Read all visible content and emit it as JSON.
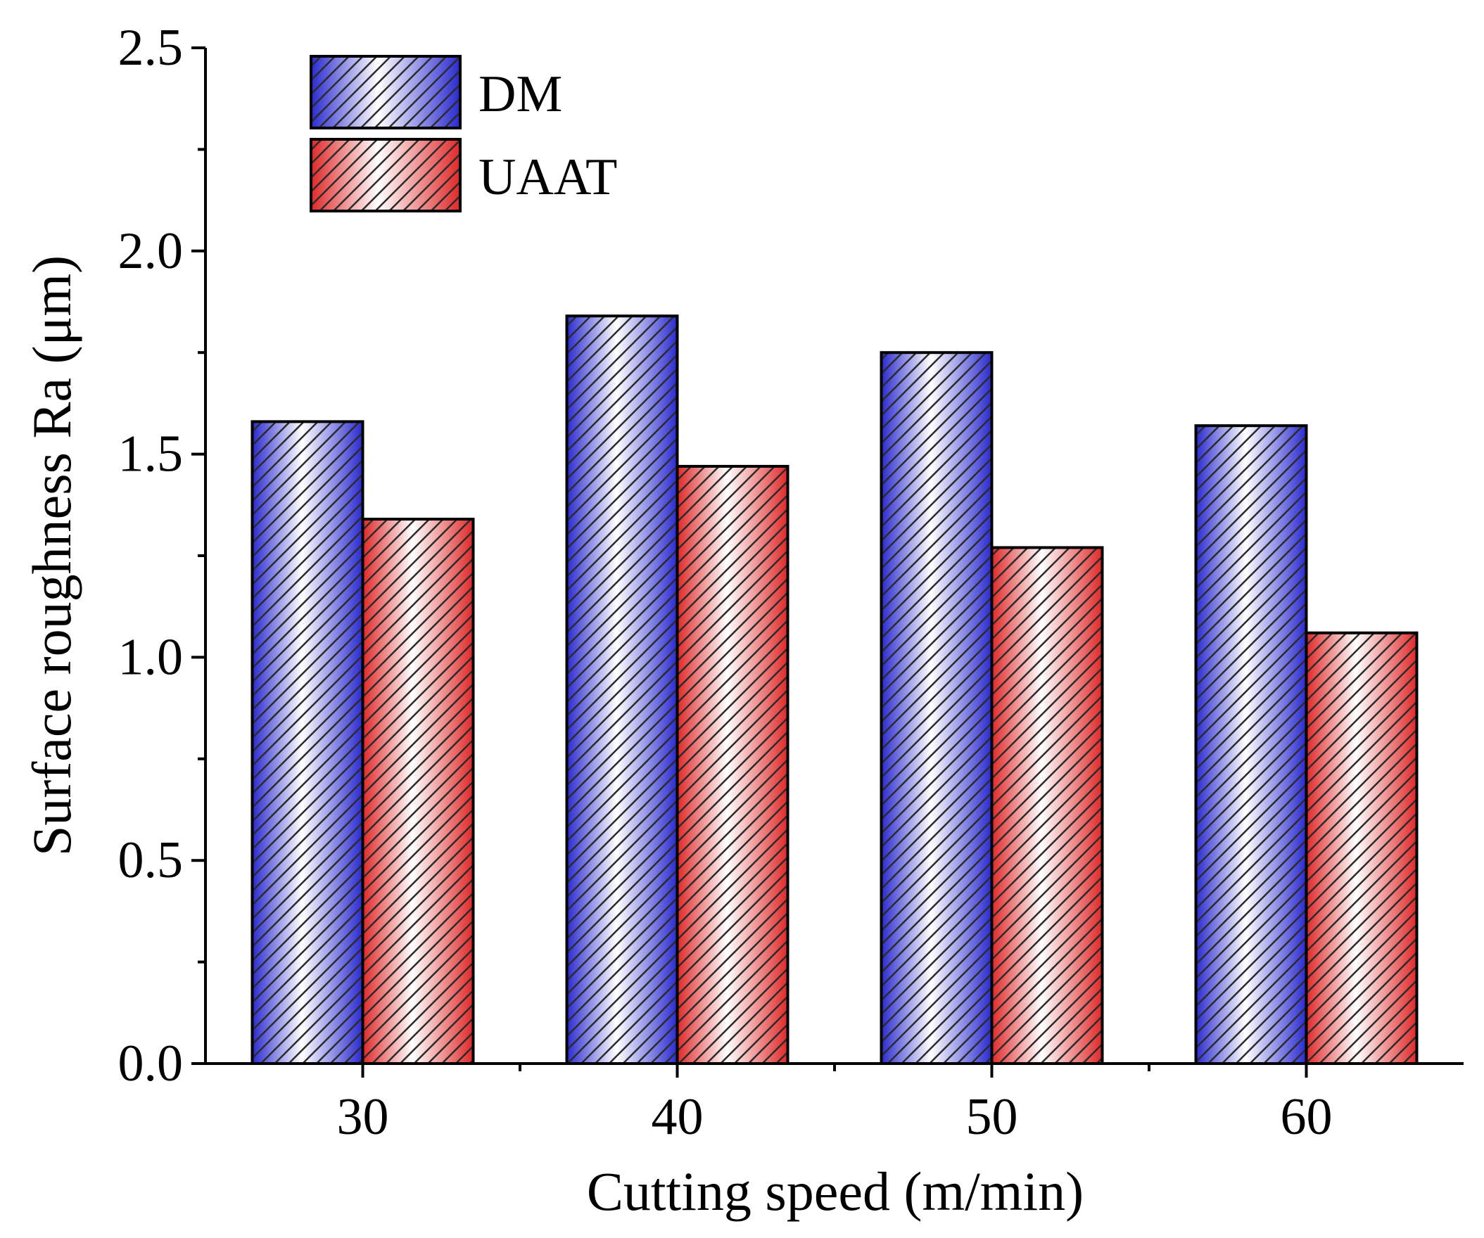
{
  "chart_data": {
    "type": "bar",
    "title": "",
    "xlabel": "Cutting speed (m/min)",
    "ylabel": "Surface roughness Ra (μm)",
    "categories": [
      "30",
      "40",
      "50",
      "60"
    ],
    "series": [
      {
        "name": "DM",
        "values": [
          1.58,
          1.84,
          1.75,
          1.57
        ],
        "color": "#2a2ad0"
      },
      {
        "name": "UAAT",
        "values": [
          1.34,
          1.47,
          1.27,
          1.06
        ],
        "color": "#e02828"
      }
    ],
    "ylim": [
      0,
      2.5
    ],
    "yticks": [
      "0.0",
      "0.5",
      "1.0",
      "1.5",
      "2.0",
      "2.5"
    ],
    "ytick_values": [
      0,
      0.5,
      1.0,
      1.5,
      2.0,
      2.5
    ],
    "grid": false,
    "legend_position": "top-left"
  }
}
